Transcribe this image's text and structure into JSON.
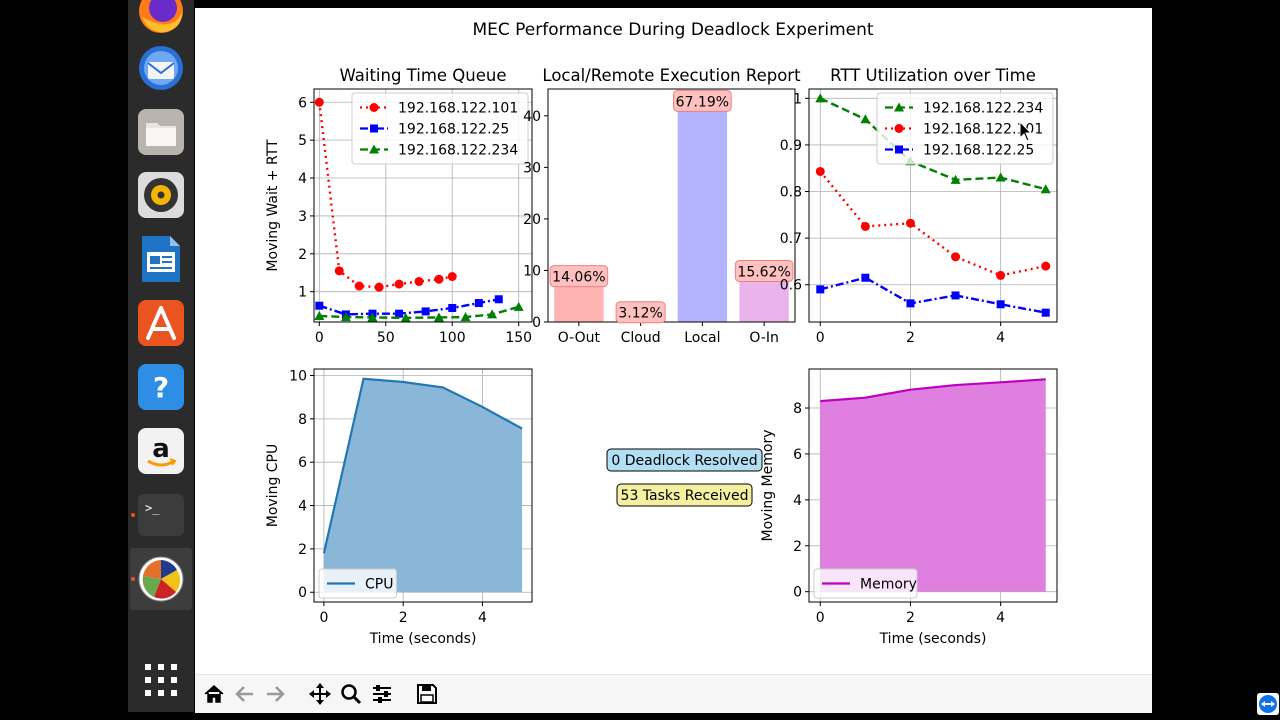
{
  "figure": {
    "title": "MEC Performance During Deadlock Experiment"
  },
  "dock": {
    "items": [
      {
        "name": "firefox-icon"
      },
      {
        "name": "thunderbird-icon"
      },
      {
        "name": "files-icon"
      },
      {
        "name": "rhythmbox-icon"
      },
      {
        "name": "libreoffice-impress-icon"
      },
      {
        "name": "software-center-icon"
      },
      {
        "name": "help-icon"
      },
      {
        "name": "amazon-icon"
      },
      {
        "name": "terminal-icon"
      },
      {
        "name": "python-figure-icon"
      },
      {
        "name": "show-apps-icon"
      }
    ]
  },
  "chart_data": [
    {
      "type": "line",
      "title": "Waiting Time Queue",
      "xlabel": "",
      "ylabel": "Moving Wait + RTT",
      "xlim": [
        -4,
        160
      ],
      "ylim": [
        0.2,
        6.35
      ],
      "xticks": [
        0,
        50,
        100,
        150
      ],
      "yticks": [
        1,
        2,
        3,
        4,
        5,
        6
      ],
      "grid": true,
      "legend": "top-right",
      "series": [
        {
          "name": "192.168.122.101",
          "color": "#ff0000",
          "style": "dotted",
          "marker": "circle",
          "x": [
            0,
            15,
            30,
            45,
            60,
            75,
            90,
            100
          ],
          "y": [
            6.0,
            1.55,
            1.15,
            1.12,
            1.2,
            1.27,
            1.33,
            1.4
          ]
        },
        {
          "name": "192.168.122.25",
          "color": "#0000ff",
          "style": "dashdot",
          "marker": "square",
          "x": [
            0,
            20,
            40,
            60,
            80,
            100,
            120,
            135
          ],
          "y": [
            0.63,
            0.4,
            0.42,
            0.42,
            0.48,
            0.57,
            0.7,
            0.8
          ]
        },
        {
          "name": "192.168.122.234",
          "color": "#008000",
          "style": "dashed",
          "marker": "triangle",
          "x": [
            0,
            20,
            40,
            65,
            90,
            110,
            130,
            150
          ],
          "y": [
            0.36,
            0.33,
            0.32,
            0.31,
            0.32,
            0.33,
            0.4,
            0.6
          ]
        }
      ]
    },
    {
      "type": "bar",
      "title": "Local/Remote Execution Report",
      "categories": [
        "O-Out",
        "Cloud",
        "Local",
        "O-In"
      ],
      "values": [
        9,
        2,
        43,
        10
      ],
      "labels": [
        "14.06%",
        "3.12%",
        "67.19%",
        "15.62%"
      ],
      "colors": [
        "#ffb3b3",
        "#ffb3b3",
        "#b3b3ff",
        "#ebb3eb"
      ],
      "ylim": [
        0,
        45.2
      ],
      "yticks": [
        0,
        10,
        20,
        30,
        40
      ],
      "grid": false
    },
    {
      "type": "line",
      "title": "RTT Utilization over Time",
      "xlabel": "",
      "ylabel": "",
      "xlim": [
        -0.25,
        5.25
      ],
      "ylim": [
        0.52,
        1.02
      ],
      "xticks": [
        0,
        2,
        4
      ],
      "yticks": [
        0.6,
        0.7,
        0.8,
        0.9,
        1.0
      ],
      "grid": true,
      "legend": "top-right",
      "series": [
        {
          "name": "192.168.122.234",
          "color": "#008000",
          "style": "dashed",
          "marker": "triangle",
          "x": [
            0,
            1,
            2,
            3,
            4,
            5
          ],
          "y": [
            1.0,
            0.955,
            0.865,
            0.825,
            0.83,
            0.805
          ]
        },
        {
          "name": "192.168.122.101",
          "color": "#ff0000",
          "style": "dotted",
          "marker": "circle",
          "x": [
            0,
            1,
            2,
            3,
            4,
            5
          ],
          "y": [
            0.843,
            0.725,
            0.732,
            0.66,
            0.62,
            0.64
          ]
        },
        {
          "name": "192.168.122.25",
          "color": "#0000ff",
          "style": "dashdot",
          "marker": "square",
          "x": [
            0,
            1,
            2,
            3,
            4,
            5
          ],
          "y": [
            0.59,
            0.615,
            0.56,
            0.577,
            0.558,
            0.54
          ]
        }
      ]
    },
    {
      "type": "area",
      "title": "",
      "xlabel": "Time (seconds)",
      "ylabel": "Moving CPU",
      "xlim": [
        -0.25,
        5.25
      ],
      "ylim": [
        -0.45,
        10.3
      ],
      "xticks": [
        0,
        2,
        4
      ],
      "yticks": [
        0,
        2,
        4,
        6,
        8,
        10
      ],
      "grid": true,
      "legend": "bottom-left",
      "series": [
        {
          "name": "CPU",
          "color": "#1f77b4",
          "fill": "#8ab7d8",
          "x": [
            0,
            1,
            2,
            3,
            4,
            5
          ],
          "y": [
            1.8,
            9.85,
            9.7,
            9.45,
            8.55,
            7.55
          ]
        }
      ]
    },
    {
      "type": "area",
      "title": "",
      "xlabel": "Time (seconds)",
      "ylabel": "Moving Memory",
      "xlim": [
        -0.25,
        5.25
      ],
      "ylim": [
        -0.45,
        9.7
      ],
      "xticks": [
        0,
        2,
        4
      ],
      "yticks": [
        0,
        2,
        4,
        6,
        8
      ],
      "grid": true,
      "legend": "bottom-left",
      "series": [
        {
          "name": "Memory",
          "color": "#bf00bf",
          "fill": "#df7fdf",
          "x": [
            0,
            1,
            2,
            3,
            4,
            5
          ],
          "y": [
            8.3,
            8.45,
            8.8,
            9.0,
            9.12,
            9.25
          ]
        }
      ]
    }
  ],
  "status": {
    "deadlock_label": "0 Deadlock Resolved",
    "tasks_label": "53 Tasks Received"
  },
  "toolbar": {
    "buttons": [
      "home-icon",
      "back-arrow-icon",
      "forward-arrow-icon",
      "pan-icon",
      "zoom-icon",
      "configure-subplots-icon",
      "save-icon"
    ]
  }
}
